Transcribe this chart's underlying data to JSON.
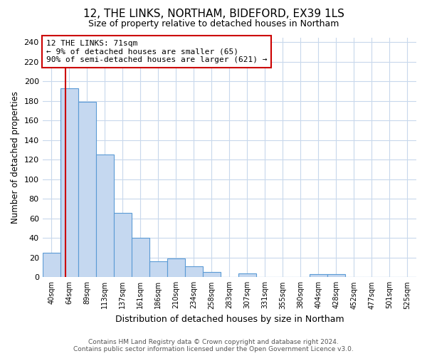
{
  "title": "12, THE LINKS, NORTHAM, BIDEFORD, EX39 1LS",
  "subtitle": "Size of property relative to detached houses in Northam",
  "xlabel": "Distribution of detached houses by size in Northam",
  "ylabel": "Number of detached properties",
  "bin_labels": [
    "40sqm",
    "64sqm",
    "89sqm",
    "113sqm",
    "137sqm",
    "161sqm",
    "186sqm",
    "210sqm",
    "234sqm",
    "258sqm",
    "283sqm",
    "307sqm",
    "331sqm",
    "355sqm",
    "380sqm",
    "404sqm",
    "428sqm",
    "452sqm",
    "477sqm",
    "501sqm",
    "525sqm"
  ],
  "bar_heights": [
    25,
    193,
    179,
    125,
    66,
    40,
    16,
    19,
    11,
    5,
    0,
    4,
    0,
    0,
    0,
    3,
    3,
    0,
    0,
    0,
    0
  ],
  "bar_color": "#c5d8f0",
  "bar_edge_color": "#5b9bd5",
  "annotation_box_text": "12 THE LINKS: 71sqm\n← 9% of detached houses are smaller (65)\n90% of semi-detached houses are larger (621) →",
  "annotation_box_color": "#ffffff",
  "annotation_box_edge_color": "#cc0000",
  "annotation_text_color": "#000000",
  "property_line_color": "#cc0000",
  "ylim": [
    0,
    245
  ],
  "yticks": [
    0,
    20,
    40,
    60,
    80,
    100,
    120,
    140,
    160,
    180,
    200,
    220,
    240
  ],
  "footer_line1": "Contains HM Land Registry data © Crown copyright and database right 2024.",
  "footer_line2": "Contains public sector information licensed under the Open Government Licence v3.0.",
  "background_color": "#ffffff",
  "grid_color": "#c8d8ec"
}
